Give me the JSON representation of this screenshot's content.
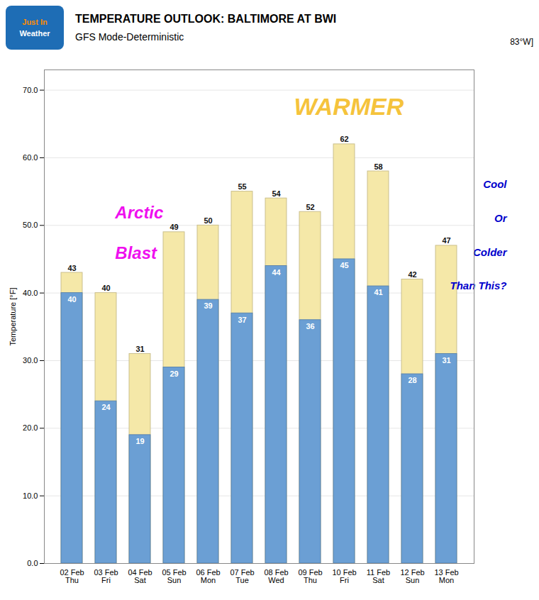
{
  "chart_data": {
    "type": "bar",
    "title": "TEMPERATURE OUTLOOK: BALTIMORE AT BWI",
    "subtitle": "GFS Mode-Deterministic",
    "y_label": "Temperature [°F]",
    "categories": [
      "02 Feb\nThu",
      "03 Feb\nFri",
      "04 Feb\nSat",
      "05 Feb\nSun",
      "06 Feb\nMon",
      "07 Feb\nTue",
      "08 Feb\nWed",
      "09 Feb\nThu",
      "10 Feb\nFri",
      "11 Feb\nSat",
      "12 Feb\nSun",
      "13 Feb\nMon"
    ],
    "series": [
      {
        "color": "#F5E8A8",
        "values": [
          43,
          40,
          31,
          49,
          50,
          55,
          54,
          52,
          62,
          58,
          42,
          47
        ]
      },
      {
        "color": "#6B9FD4",
        "values": [
          40,
          24,
          19,
          29,
          39,
          37,
          44,
          36,
          45,
          41,
          28,
          31
        ]
      }
    ],
    "stacked": false,
    "data_labels": true,
    "ylim": [
      0,
      73
    ],
    "yticks": [
      {
        "value": 0,
        "label": "0.0"
      },
      {
        "value": 10,
        "label": "10.0"
      },
      {
        "value": 20,
        "label": "20.0"
      },
      {
        "value": 30,
        "label": "30.0"
      },
      {
        "value": 40,
        "label": "40.0"
      },
      {
        "value": 50,
        "label": "50.0"
      },
      {
        "value": 60,
        "label": "60.0"
      },
      {
        "value": 70,
        "label": "70.0"
      }
    ],
    "grid": true,
    "annotations": [
      {
        "text": "Just In",
        "color": "#FF8C00",
        "background": "#1E6DB5"
      },
      {
        "text": "Weather",
        "color": "#FFFFFF",
        "background": "#1E6DB5"
      },
      {
        "text": "83°W]",
        "color": "#000000"
      },
      {
        "text": "WARMER",
        "color": "#F5C030"
      },
      {
        "text": "Arctic",
        "color": "#EE00EE"
      },
      {
        "text": "Blast",
        "color": "#EE00EE"
      },
      {
        "text": "Cool",
        "color": "#0000CC"
      },
      {
        "text": "Or",
        "color": "#0000CC"
      },
      {
        "text": "Colder",
        "color": "#0000CC"
      },
      {
        "text": "Than This?",
        "color": "#0000CC"
      }
    ]
  }
}
